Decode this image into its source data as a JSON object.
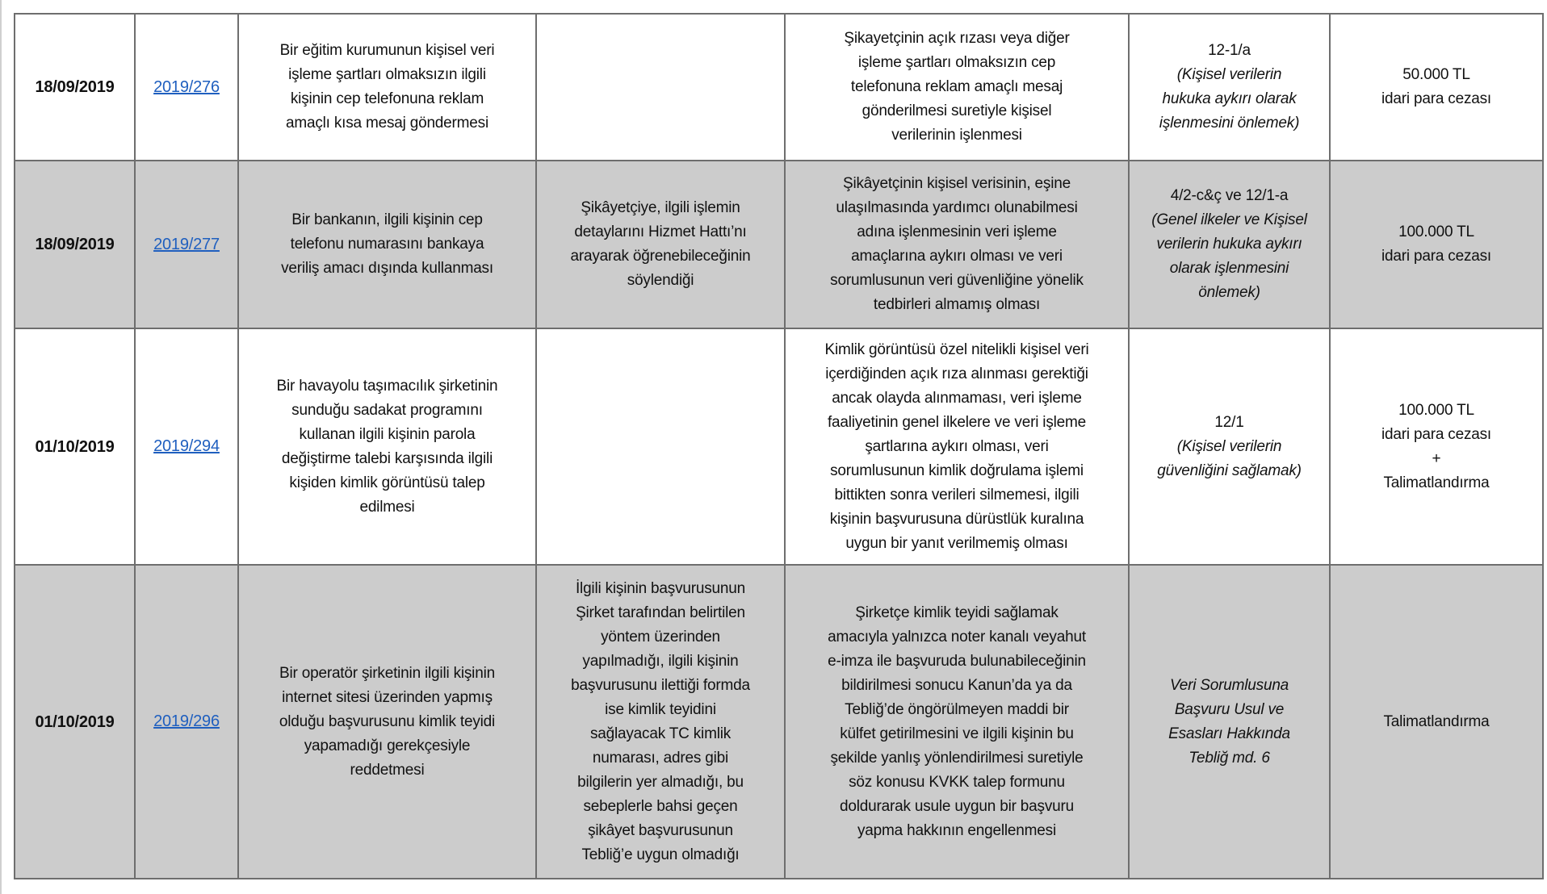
{
  "rows": [
    {
      "date": "18/09/2019",
      "decision": "2019/276",
      "summary": "Bir eğitim kurumunun kişisel veri\nişleme şartları olmaksızın ilgili\nkişinin cep telefonuna reklam\namaçlı kısa mesaj göndermesi",
      "response": "",
      "violation": "Şikayetçinin açık rızası veya diğer\nişleme şartları olmaksızın cep\ntelefonuna reklam amaçlı mesaj\ngönderilmesi suretiyle kişisel\nverilerinin işlenmesi",
      "article": "12-1/a",
      "article_note": "(Kişisel verilerin\nhukuka aykırı olarak\nişlenmesini önlemek)",
      "sanction": "50.000 TL\nidari para cezası"
    },
    {
      "date": "18/09/2019",
      "decision": "2019/277",
      "summary": "Bir bankanın, ilgili kişinin cep\ntelefonu numarasını bankaya\nveriliş amacı dışında kullanması",
      "response": "Şikâyetçiye, ilgili işlemin\ndetaylarını Hizmet Hattı’nı\narayarak öğrenebileceğinin\nsöylendiği",
      "violation": "Şikâyetçinin kişisel verisinin, eşine\nulaşılmasında yardımcı olunabilmesi\nadına işlenmesinin veri işleme\namaçlarına aykırı olması ve veri\nsorumlusunun veri güvenliğine yönelik\ntedbirleri almamış olması",
      "article": "4/2-c&ç ve 12/1-a",
      "article_note": "(Genel ilkeler ve Kişisel\nverilerin hukuka aykırı\nolarak işlenmesini\nönlemek)",
      "sanction": "100.000 TL\nidari para cezası"
    },
    {
      "date": "01/10/2019",
      "decision": "2019/294",
      "summary": "Bir havayolu taşımacılık şirketinin\nsunduğu sadakat programını\nkullanan ilgili kişinin parola\ndeğiştirme talebi karşısında ilgili\nkişiden kimlik görüntüsü talep\nedilmesi",
      "response": "",
      "violation": "Kimlik görüntüsü özel nitelikli kişisel veri\niçerdiğinden açık rıza alınması gerektiği\nancak olayda alınmaması, veri işleme\nfaaliyetinin genel ilkelere ve veri işleme\nşartlarına aykırı olması, veri\nsorumlusunun kimlik doğrulama işlemi\nbittikten sonra verileri silmemesi, ilgili\nkişinin başvurusuna dürüstlük kuralına\nuygun bir yanıt verilmemiş olması",
      "article": "12/1",
      "article_note": "(Kişisel verilerin\ngüvenliğini sağlamak)",
      "sanction": "100.000 TL\nidari para cezası\n+\nTalimatlandırma"
    },
    {
      "date": "01/10/2019",
      "decision": "2019/296",
      "summary": "Bir operatör şirketinin ilgili kişinin\ninternet sitesi üzerinden yapmış\nolduğu başvurusunu kimlik teyidi\nyapamadığı gerekçesiyle\nreddetmesi",
      "response": "İlgili kişinin başvurusunun\nŞirket tarafından belirtilen\nyöntem üzerinden\nyapılmadığı, ilgili kişinin\nbaşvurusunu ilettiği formda\nise kimlik teyidini\nsağlayacak TC kimlik\nnumarası, adres gibi\nbilgilerin yer almadığı, bu\nsebeplerle bahsi geçen\nşikâyet başvurusunun\nTebliğ’e uygun olmadığı",
      "violation": "Şirketçe kimlik teyidi sağlamak\namacıyla yalnızca noter kanalı veyahut\ne-imza ile başvuruda bulunabileceğinin\nbildirilmesi sonucu Kanun’da ya da\nTebliğ’de öngörülmeyen maddi bir\nkülfet getirilmesini ve ilgili kişinin bu\nşekilde yanlış yönlendirilmesi suretiyle\nsöz konusu KVKK talep formunu\ndoldurarak usule uygun bir başvuru\nyapma hakkının engellenmesi",
      "article": "",
      "article_note": "Veri Sorumlusuna\nBaşvuru Usul ve\nEsasları Hakkında\nTebliğ md. 6",
      "sanction": "Talimatlandırma"
    }
  ],
  "colors": {
    "link": "#1f5fbf",
    "alt_row": "#cccccc",
    "border": "#6e6e6e"
  }
}
